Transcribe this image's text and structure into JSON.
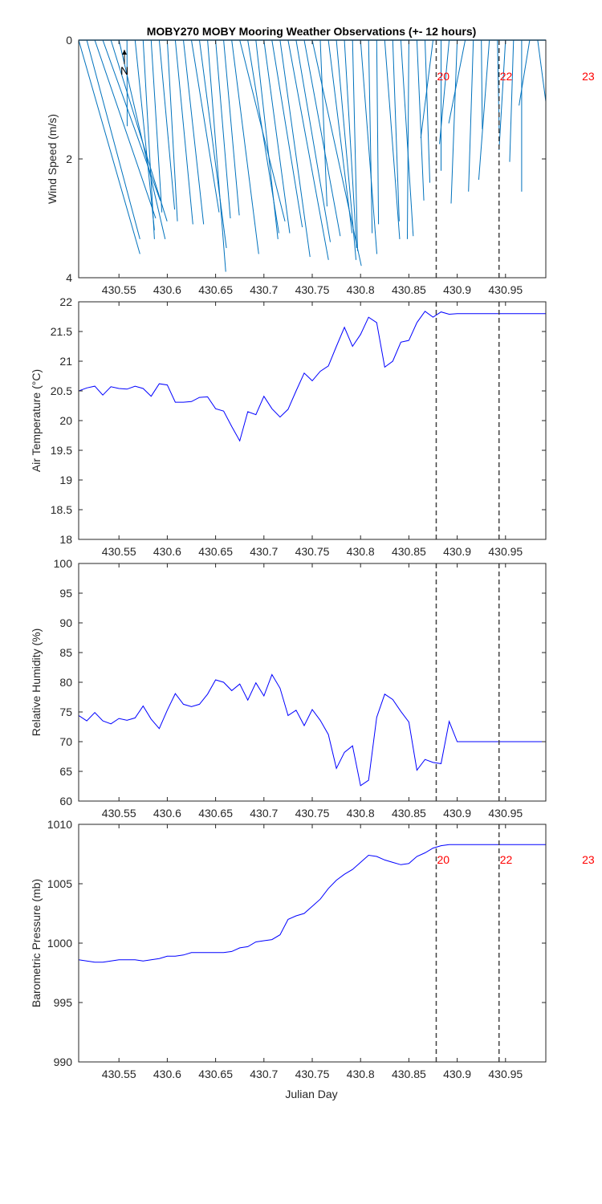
{
  "title": "MOBY270 MOBY Mooring Weather Observations (+- 12 hours)",
  "xlabel": "Julian Day",
  "colors": {
    "line": "#0000ff",
    "wind": "#0072bd",
    "marker_text": "#ff0000",
    "marker_line": "#404040",
    "axis": "#262626"
  },
  "chart_data": [
    {
      "type": "line",
      "name_key": "wind",
      "subtype": "wind-stick",
      "ylabel": "Wind Speed (m/s)",
      "ylim": [
        4,
        0
      ],
      "yticks": [
        0,
        2,
        4
      ],
      "xlim": [
        430.5083,
        430.9917
      ],
      "xticks": [
        430.55,
        430.6,
        430.65,
        430.7,
        430.75,
        430.8,
        430.85,
        430.9,
        430.95
      ],
      "xticklabels": [
        "430.55",
        "430.6",
        "430.65",
        "430.7",
        "430.75",
        "430.8",
        "430.85",
        "430.9",
        "430.95"
      ],
      "north_label": "N",
      "wind_scale_x_per_ms": 0.0054,
      "series": [
        {
          "x": [
            430.5083,
            430.5167,
            430.525,
            430.5333,
            430.5417,
            430.55,
            430.5583,
            430.5667,
            430.575,
            430.5833,
            430.5917,
            430.6,
            430.6083,
            430.6167,
            430.625,
            430.6333,
            430.6417,
            430.65,
            430.6583,
            430.6667,
            430.675,
            430.6833,
            430.6917,
            430.7,
            430.7083,
            430.7167,
            430.725,
            430.7333,
            430.7417,
            430.75,
            430.7583,
            430.7667,
            430.775,
            430.7833,
            430.7917,
            430.8,
            430.8083,
            430.8167,
            430.825,
            430.8333,
            430.8417,
            430.85,
            430.8583,
            430.8667,
            430.875,
            430.8833,
            430.8917,
            430.9,
            430.9083,
            430.9167,
            430.925,
            430.9333,
            430.9417,
            430.95,
            430.9583,
            430.9667,
            430.975,
            430.9833,
            430.9917
          ],
          "tip_x": [
            430.5717,
            430.5717,
            430.588,
            430.5927,
            430.5998,
            430.5978,
            430.5585,
            430.5867,
            430.5867,
            430.5944,
            430.6076,
            430.6105,
            430.6265,
            430.6376,
            430.6536,
            430.6612,
            430.6605,
            430.6653,
            430.6745,
            430.6946,
            430.7218,
            430.7155,
            430.7145,
            430.7267,
            430.7397,
            430.7477,
            430.7668,
            430.7687,
            430.779,
            430.8008,
            430.7653,
            430.7912,
            430.7953,
            430.7959,
            430.7969,
            430.8169,
            430.812,
            430.8186,
            430.8405,
            430.84,
            430.8545,
            430.8484,
            430.8655,
            430.8717,
            430.8623,
            430.8833,
            430.8817,
            430.8937,
            430.8913,
            430.9117,
            430.926,
            430.9223,
            430.9434,
            430.9433,
            430.9543,
            430.9667,
            430.964,
            430.9983,
            430.995
          ],
          "tip_y": [
            3.6,
            3.35,
            3.0,
            2.7,
            3.05,
            3.35,
            1.45,
            3.2,
            3.35,
            2.9,
            2.85,
            3.05,
            3.1,
            3.1,
            2.9,
            3.5,
            3.9,
            3.0,
            2.95,
            3.6,
            3.05,
            3.25,
            3.35,
            3.25,
            3.15,
            3.65,
            3.7,
            3.4,
            3.3,
            3.8,
            2.8,
            3.25,
            3.7,
            3.5,
            3.55,
            3.6,
            3.25,
            3.1,
            3.35,
            3.05,
            3.3,
            3.35,
            2.7,
            2.4,
            1.65,
            2.2,
            1.75,
            2.75,
            1.4,
            2.55,
            1.5,
            2.35,
            1.5,
            1.85,
            2.05,
            2.55,
            1.1,
            1.85,
            1.35
          ]
        }
      ],
      "markers": [
        {
          "x": 430.8783,
          "label": "20"
        },
        {
          "x": 430.9433,
          "label": "22"
        },
        {
          "x": 431.0283,
          "label": "23"
        }
      ]
    },
    {
      "type": "line",
      "name_key": "airtemp",
      "ylabel": "Air Temperature (°C)",
      "ylim": [
        18,
        22
      ],
      "yticks": [
        18,
        18.5,
        19,
        19.5,
        20,
        20.5,
        21,
        21.5,
        22
      ],
      "yticklabels": [
        "18",
        "18.5",
        "19",
        "19.5",
        "20",
        "20.5",
        "21",
        "21.5",
        "22"
      ],
      "xlim": [
        430.5083,
        430.9917
      ],
      "xticks": [
        430.55,
        430.6,
        430.65,
        430.7,
        430.75,
        430.8,
        430.85,
        430.9,
        430.95
      ],
      "xticklabels": [
        "430.55",
        "430.6",
        "430.65",
        "430.7",
        "430.75",
        "430.8",
        "430.85",
        "430.9",
        "430.95"
      ],
      "series": [
        {
          "x": [
            430.5083,
            430.5167,
            430.525,
            430.5333,
            430.5417,
            430.55,
            430.5583,
            430.5667,
            430.575,
            430.5833,
            430.5917,
            430.6,
            430.6083,
            430.6167,
            430.625,
            430.6333,
            430.6417,
            430.65,
            430.6583,
            430.6667,
            430.675,
            430.6833,
            430.6917,
            430.7,
            430.7083,
            430.7167,
            430.725,
            430.7333,
            430.7417,
            430.75,
            430.7583,
            430.7667,
            430.775,
            430.7833,
            430.7917,
            430.8,
            430.8083,
            430.8167,
            430.825,
            430.8333,
            430.8417,
            430.85,
            430.8583,
            430.8667,
            430.875,
            430.8833,
            430.8917,
            430.9,
            430.9083,
            430.9167,
            430.925,
            430.9333,
            430.9417,
            430.95,
            430.9583,
            430.9667,
            430.975,
            430.9833,
            430.9917
          ],
          "y": [
            20.5,
            20.55,
            20.58,
            20.43,
            20.57,
            20.54,
            20.53,
            20.58,
            20.54,
            20.41,
            20.62,
            20.6,
            20.31,
            20.31,
            20.32,
            20.39,
            20.4,
            20.2,
            20.16,
            19.9,
            19.66,
            20.15,
            20.1,
            20.41,
            20.2,
            20.06,
            20.19,
            20.5,
            20.8,
            20.67,
            20.83,
            20.92,
            21.25,
            21.57,
            21.25,
            21.45,
            21.74,
            21.65,
            20.9,
            21.0,
            21.32,
            21.35,
            21.65,
            21.84,
            21.74,
            21.83,
            21.79,
            21.8,
            21.8,
            21.8,
            21.8,
            21.8,
            21.8,
            21.8,
            21.8,
            21.8,
            21.8,
            21.8,
            21.8
          ]
        }
      ],
      "markers": [
        {
          "x": 430.8783,
          "label": ""
        },
        {
          "x": 430.9433,
          "label": ""
        }
      ]
    },
    {
      "type": "line",
      "name_key": "rh",
      "ylabel": "Relative Humidity (%)",
      "ylim": [
        60,
        100
      ],
      "yticks": [
        60,
        65,
        70,
        75,
        80,
        85,
        90,
        95,
        100
      ],
      "yticklabels": [
        "60",
        "65",
        "70",
        "75",
        "80",
        "85",
        "90",
        "95",
        "100"
      ],
      "xlim": [
        430.5083,
        430.9917
      ],
      "xticks": [
        430.55,
        430.6,
        430.65,
        430.7,
        430.75,
        430.8,
        430.85,
        430.9,
        430.95
      ],
      "xticklabels": [
        "430.55",
        "430.6",
        "430.65",
        "430.7",
        "430.75",
        "430.8",
        "430.85",
        "430.9",
        "430.95"
      ],
      "series": [
        {
          "x": [
            430.5083,
            430.5167,
            430.525,
            430.5333,
            430.5417,
            430.55,
            430.5583,
            430.5667,
            430.575,
            430.5833,
            430.5917,
            430.6,
            430.6083,
            430.6167,
            430.625,
            430.6333,
            430.6417,
            430.65,
            430.6583,
            430.6667,
            430.675,
            430.6833,
            430.6917,
            430.7,
            430.7083,
            430.7167,
            430.725,
            430.7333,
            430.7417,
            430.75,
            430.7583,
            430.7667,
            430.775,
            430.7833,
            430.7917,
            430.8,
            430.8083,
            430.8167,
            430.825,
            430.8333,
            430.8417,
            430.85,
            430.8583,
            430.8667,
            430.875,
            430.8833,
            430.8917,
            430.9,
            430.9083,
            430.9167,
            430.925,
            430.9333,
            430.9417,
            430.95,
            430.9583,
            430.9667,
            430.975,
            430.9833,
            430.9917
          ],
          "y": [
            74.4,
            73.5,
            74.9,
            73.5,
            73.0,
            73.9,
            73.6,
            74.0,
            76.0,
            73.8,
            72.2,
            75.3,
            78.1,
            76.3,
            75.9,
            76.3,
            78.0,
            80.4,
            80.0,
            78.6,
            79.7,
            77.0,
            79.9,
            77.7,
            81.3,
            79.0,
            74.4,
            75.3,
            72.7,
            75.4,
            73.6,
            71.2,
            65.5,
            68.2,
            69.3,
            62.6,
            63.5,
            74.1,
            78.0,
            77.1,
            75.1,
            73.3,
            65.2,
            67.0,
            66.5,
            66.3,
            73.4,
            70.0,
            70.0,
            70.0,
            70.0,
            70.0,
            70.0,
            70.0,
            70.0,
            70.0,
            70.0,
            70.0,
            70.0
          ]
        }
      ],
      "markers": [
        {
          "x": 430.8783,
          "label": ""
        },
        {
          "x": 430.9433,
          "label": ""
        }
      ]
    },
    {
      "type": "line",
      "name_key": "pressure",
      "ylabel": "Barometric Pressure (mb)",
      "ylim": [
        990,
        1010
      ],
      "yticks": [
        990,
        995,
        1000,
        1005,
        1010
      ],
      "yticklabels": [
        "990",
        "995",
        "1000",
        "1005",
        "1010"
      ],
      "xlim": [
        430.5083,
        430.9917
      ],
      "xticks": [
        430.55,
        430.6,
        430.65,
        430.7,
        430.75,
        430.8,
        430.85,
        430.9,
        430.95
      ],
      "xticklabels": [
        "430.55",
        "430.6",
        "430.65",
        "430.7",
        "430.75",
        "430.8",
        "430.85",
        "430.9",
        "430.95"
      ],
      "series": [
        {
          "x": [
            430.5083,
            430.5167,
            430.525,
            430.5333,
            430.5417,
            430.55,
            430.5583,
            430.5667,
            430.575,
            430.5833,
            430.5917,
            430.6,
            430.6083,
            430.6167,
            430.625,
            430.6333,
            430.6417,
            430.65,
            430.6583,
            430.6667,
            430.675,
            430.6833,
            430.6917,
            430.7,
            430.7083,
            430.7167,
            430.725,
            430.7333,
            430.7417,
            430.75,
            430.7583,
            430.7667,
            430.775,
            430.7833,
            430.7917,
            430.8,
            430.8083,
            430.8167,
            430.825,
            430.8333,
            430.8417,
            430.85,
            430.8583,
            430.8667,
            430.875,
            430.8833,
            430.8917,
            430.9,
            430.9083,
            430.9167,
            430.925,
            430.9333,
            430.9417,
            430.95,
            430.9583,
            430.9667,
            430.975,
            430.9833,
            430.9917
          ],
          "y": [
            998.6,
            998.5,
            998.4,
            998.4,
            998.5,
            998.6,
            998.6,
            998.6,
            998.5,
            998.6,
            998.7,
            998.9,
            998.9,
            999.0,
            999.2,
            999.2,
            999.2,
            999.2,
            999.2,
            999.3,
            999.6,
            999.7,
            1000.1,
            1000.2,
            1000.3,
            1000.7,
            1002.0,
            1002.3,
            1002.5,
            1003.1,
            1003.7,
            1004.6,
            1005.3,
            1005.8,
            1006.2,
            1006.8,
            1007.4,
            1007.3,
            1007.0,
            1006.8,
            1006.6,
            1006.7,
            1007.3,
            1007.6,
            1008.0,
            1008.2,
            1008.3,
            1008.3,
            1008.3,
            1008.3,
            1008.3,
            1008.3,
            1008.3,
            1008.3,
            1008.3,
            1008.3,
            1008.3,
            1008.3,
            1008.3
          ]
        }
      ],
      "markers": [
        {
          "x": 430.8783,
          "label": "20"
        },
        {
          "x": 430.9433,
          "label": "22"
        },
        {
          "x": 431.0283,
          "label": "23"
        }
      ]
    }
  ]
}
